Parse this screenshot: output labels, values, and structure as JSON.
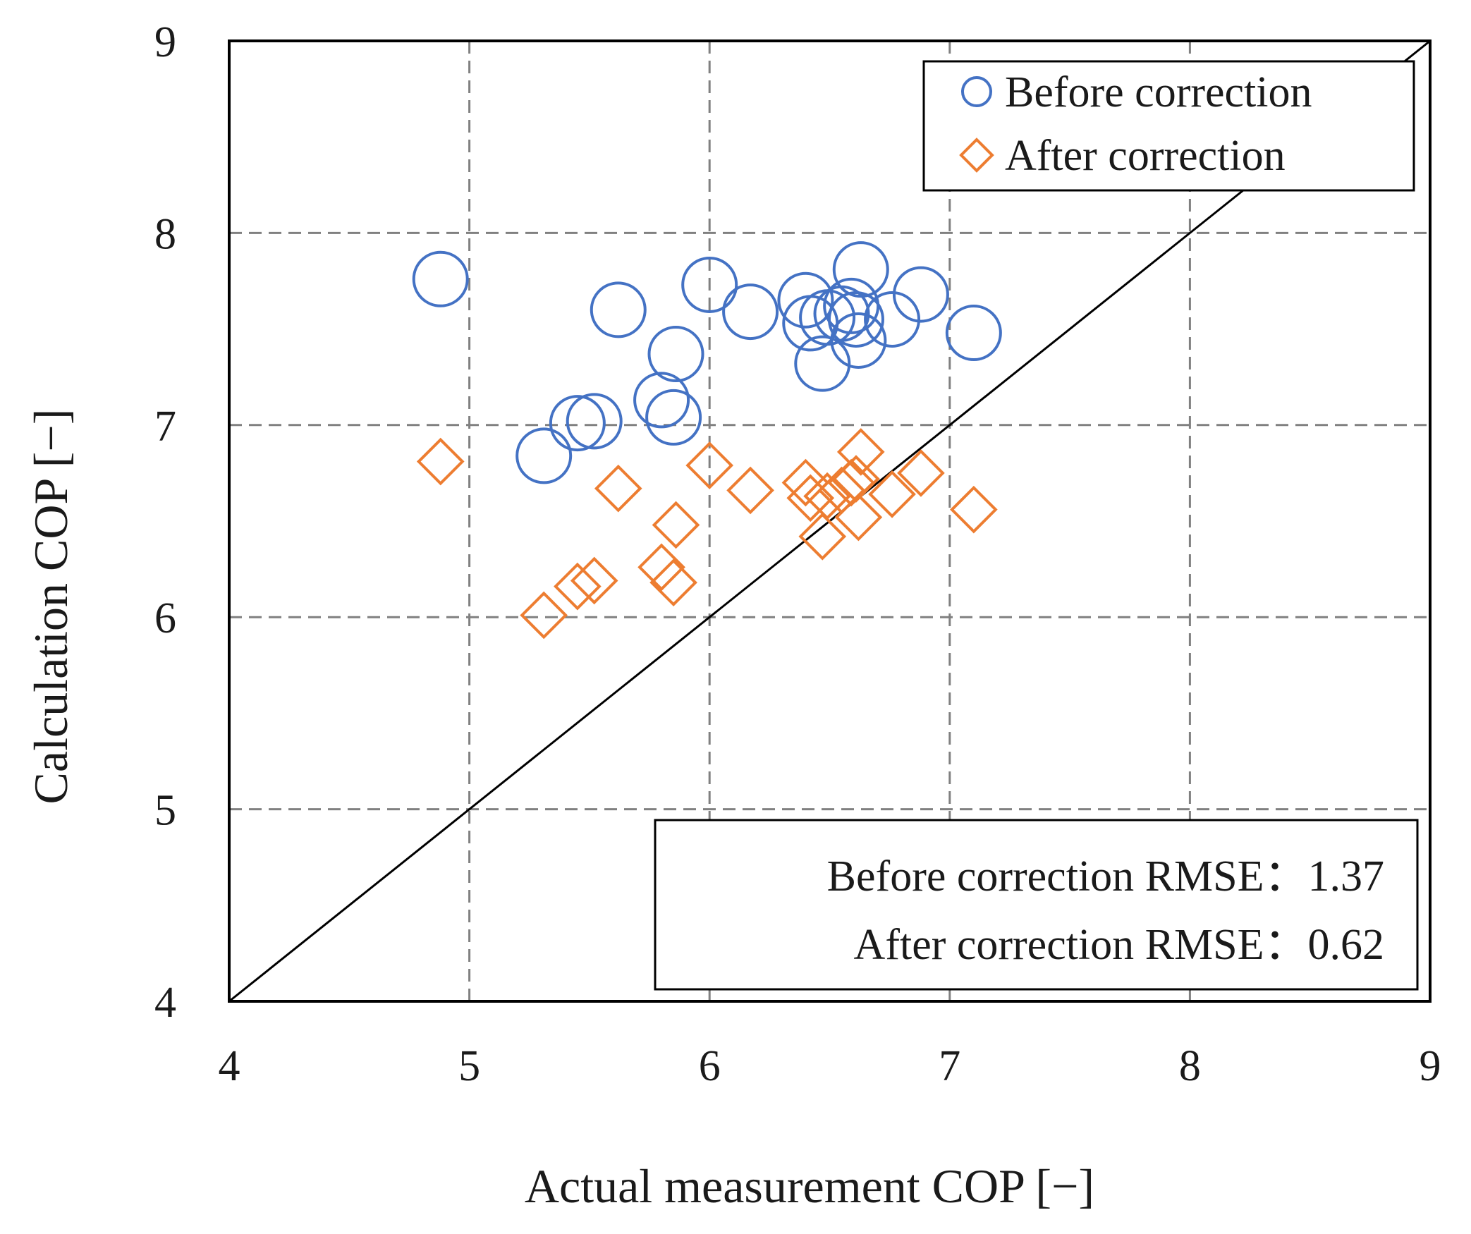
{
  "chart_data": {
    "type": "scatter",
    "xlabel": "Actual measurement COP [−]",
    "ylabel": "Calculation COP [−]",
    "xlim": [
      4,
      9
    ],
    "ylim": [
      4,
      9
    ],
    "x_ticks": [
      "4",
      "5",
      "6",
      "7",
      "8",
      "9"
    ],
    "y_ticks": [
      "4",
      "5",
      "6",
      "7",
      "8",
      "9"
    ],
    "grid": true,
    "grid_style": "dashed",
    "reference_line": "y = x",
    "legend_position": "top-right",
    "series": [
      {
        "name": "Before correction",
        "marker": "circle",
        "color": "#4472C4",
        "x": [
          4.88,
          5.31,
          5.45,
          5.52,
          5.62,
          5.8,
          5.85,
          5.86,
          6.0,
          6.17,
          6.4,
          6.42,
          6.47,
          6.49,
          6.55,
          6.59,
          6.61,
          6.62,
          6.63,
          6.76,
          6.88,
          7.1
        ],
        "y": [
          7.76,
          6.84,
          7.01,
          7.02,
          7.6,
          7.13,
          7.04,
          7.37,
          7.73,
          7.59,
          7.65,
          7.53,
          7.32,
          7.56,
          7.58,
          7.62,
          7.55,
          7.44,
          7.81,
          7.55,
          7.68,
          7.48
        ]
      },
      {
        "name": "After correction",
        "marker": "diamond",
        "color": "#ED7D31",
        "x": [
          4.88,
          5.31,
          5.45,
          5.52,
          5.62,
          5.8,
          5.85,
          5.86,
          6.0,
          6.17,
          6.4,
          6.42,
          6.47,
          6.49,
          6.55,
          6.59,
          6.61,
          6.62,
          6.63,
          6.76,
          6.88,
          7.1
        ],
        "y": [
          6.81,
          6.01,
          6.16,
          6.19,
          6.67,
          6.26,
          6.18,
          6.48,
          6.79,
          6.66,
          6.7,
          6.62,
          6.42,
          6.63,
          6.66,
          6.7,
          6.72,
          6.52,
          6.86,
          6.64,
          6.75,
          6.56
        ]
      }
    ],
    "annotation": {
      "lines": [
        "Before correction RMSE：1.37",
        "After correction RMSE：0.62"
      ]
    }
  }
}
